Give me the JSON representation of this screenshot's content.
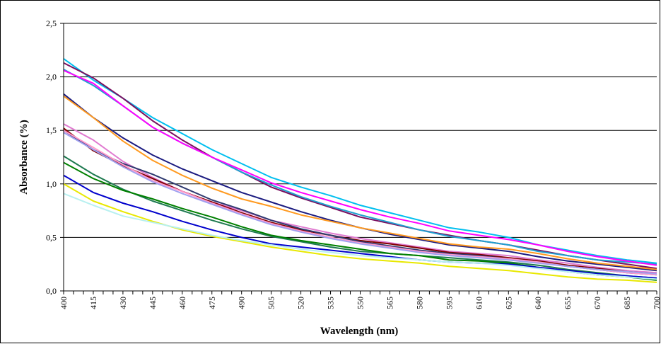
{
  "chart_data": {
    "type": "line",
    "xlabel": "Wavelength (nm)",
    "ylabel": "Absorbance (%)",
    "xlim": [
      400,
      700
    ],
    "ylim": [
      0,
      2.5
    ],
    "x_ticks": [
      "400",
      "415",
      "430",
      "445",
      "460",
      "475",
      "490",
      "505",
      "520",
      "535",
      "550",
      "565",
      "580",
      "595",
      "610",
      "625",
      "640",
      "655",
      "670",
      "685",
      "700"
    ],
    "y_ticks": [
      "0,0",
      "0,5",
      "1,0",
      "1,5",
      "2,0",
      "2,5"
    ],
    "grid": "horizontal",
    "legend": "none",
    "x": [
      400,
      415,
      430,
      445,
      460,
      475,
      490,
      505,
      520,
      535,
      550,
      565,
      580,
      595,
      610,
      625,
      640,
      655,
      670,
      685,
      700
    ],
    "series": [
      {
        "color": "#00bfef",
        "values": [
          2.17,
          1.97,
          1.8,
          1.62,
          1.47,
          1.32,
          1.19,
          1.06,
          0.97,
          0.89,
          0.8,
          0.73,
          0.66,
          0.59,
          0.55,
          0.5,
          0.43,
          0.38,
          0.33,
          0.29,
          0.26
        ]
      },
      {
        "color": "#7a1060",
        "values": [
          2.13,
          1.99,
          1.8,
          1.59,
          1.41,
          1.25,
          1.11,
          0.97,
          0.87,
          0.78,
          0.69,
          0.63,
          0.57,
          0.52,
          0.47,
          0.43,
          0.38,
          0.33,
          0.29,
          0.25,
          0.21
        ]
      },
      {
        "color": "#1fa0d0",
        "values": [
          2.07,
          1.92,
          1.73,
          1.53,
          1.38,
          1.25,
          1.11,
          0.99,
          0.88,
          0.79,
          0.71,
          0.64,
          0.57,
          0.51,
          0.47,
          0.43,
          0.37,
          0.33,
          0.29,
          0.27,
          0.25
        ]
      },
      {
        "color": "#ff00ff",
        "values": [
          2.06,
          1.94,
          1.73,
          1.53,
          1.38,
          1.25,
          1.13,
          1.01,
          0.92,
          0.84,
          0.76,
          0.69,
          0.63,
          0.56,
          0.52,
          0.48,
          0.43,
          0.37,
          0.32,
          0.28,
          0.24
        ]
      },
      {
        "color": "#1b1b80",
        "values": [
          1.84,
          1.62,
          1.43,
          1.27,
          1.14,
          1.03,
          0.92,
          0.83,
          0.74,
          0.66,
          0.59,
          0.53,
          0.48,
          0.43,
          0.4,
          0.37,
          0.32,
          0.28,
          0.25,
          0.22,
          0.19
        ]
      },
      {
        "color": "#ff9a20",
        "values": [
          1.82,
          1.62,
          1.4,
          1.22,
          1.08,
          0.96,
          0.86,
          0.79,
          0.71,
          0.65,
          0.59,
          0.54,
          0.49,
          0.44,
          0.41,
          0.39,
          0.35,
          0.3,
          0.26,
          0.23,
          0.2
        ]
      },
      {
        "color": "#e07ad0",
        "values": [
          1.56,
          1.41,
          1.21,
          1.06,
          0.93,
          0.83,
          0.75,
          0.66,
          0.6,
          0.54,
          0.49,
          0.45,
          0.41,
          0.37,
          0.35,
          0.33,
          0.29,
          0.26,
          0.22,
          0.19,
          0.17
        ]
      },
      {
        "color": "#800000",
        "values": [
          1.52,
          1.31,
          1.17,
          1.05,
          0.93,
          0.83,
          0.73,
          0.64,
          0.57,
          0.52,
          0.47,
          0.44,
          0.4,
          0.36,
          0.34,
          0.31,
          0.28,
          0.24,
          0.21,
          0.18,
          0.16
        ]
      },
      {
        "color": "#2f3a70",
        "values": [
          1.5,
          1.32,
          1.19,
          1.09,
          0.97,
          0.85,
          0.76,
          0.66,
          0.58,
          0.52,
          0.46,
          0.42,
          0.38,
          0.35,
          0.33,
          0.3,
          0.27,
          0.23,
          0.2,
          0.17,
          0.15
        ]
      },
      {
        "color": "#ff99cc",
        "values": [
          1.5,
          1.34,
          1.18,
          1.03,
          0.93,
          0.82,
          0.72,
          0.63,
          0.56,
          0.5,
          0.45,
          0.41,
          0.37,
          0.34,
          0.32,
          0.3,
          0.27,
          0.23,
          0.2,
          0.17,
          0.15
        ]
      },
      {
        "color": "#a0a0f0",
        "values": [
          1.48,
          1.32,
          1.16,
          1.02,
          0.91,
          0.81,
          0.71,
          0.62,
          0.55,
          0.49,
          0.44,
          0.4,
          0.36,
          0.33,
          0.31,
          0.29,
          0.26,
          0.23,
          0.2,
          0.18,
          0.16
        ]
      },
      {
        "color": "#1e7a50",
        "values": [
          1.26,
          1.09,
          0.95,
          0.84,
          0.75,
          0.66,
          0.58,
          0.51,
          0.46,
          0.41,
          0.37,
          0.35,
          0.33,
          0.31,
          0.29,
          0.27,
          0.24,
          0.2,
          0.17,
          0.14,
          0.12
        ]
      },
      {
        "color": "#008000",
        "values": [
          1.2,
          1.05,
          0.94,
          0.86,
          0.77,
          0.69,
          0.6,
          0.52,
          0.47,
          0.43,
          0.39,
          0.35,
          0.33,
          0.29,
          0.28,
          0.26,
          0.22,
          0.18,
          0.15,
          0.13,
          0.1
        ]
      },
      {
        "color": "#0000cc",
        "values": [
          1.08,
          0.92,
          0.82,
          0.74,
          0.65,
          0.57,
          0.5,
          0.44,
          0.41,
          0.38,
          0.35,
          0.32,
          0.29,
          0.27,
          0.26,
          0.25,
          0.22,
          0.19,
          0.16,
          0.14,
          0.12
        ]
      },
      {
        "color": "#e8e800",
        "values": [
          1.0,
          0.84,
          0.74,
          0.65,
          0.57,
          0.51,
          0.46,
          0.41,
          0.37,
          0.33,
          0.3,
          0.28,
          0.26,
          0.23,
          0.21,
          0.19,
          0.16,
          0.13,
          0.11,
          0.1,
          0.08
        ]
      },
      {
        "color": "#b8f0f0",
        "values": [
          0.91,
          0.8,
          0.7,
          0.64,
          0.58,
          0.52,
          0.47,
          0.43,
          0.39,
          0.36,
          0.33,
          0.31,
          0.29,
          0.27,
          0.26,
          0.24,
          0.21,
          0.18,
          0.15,
          0.13,
          0.11
        ]
      }
    ]
  }
}
